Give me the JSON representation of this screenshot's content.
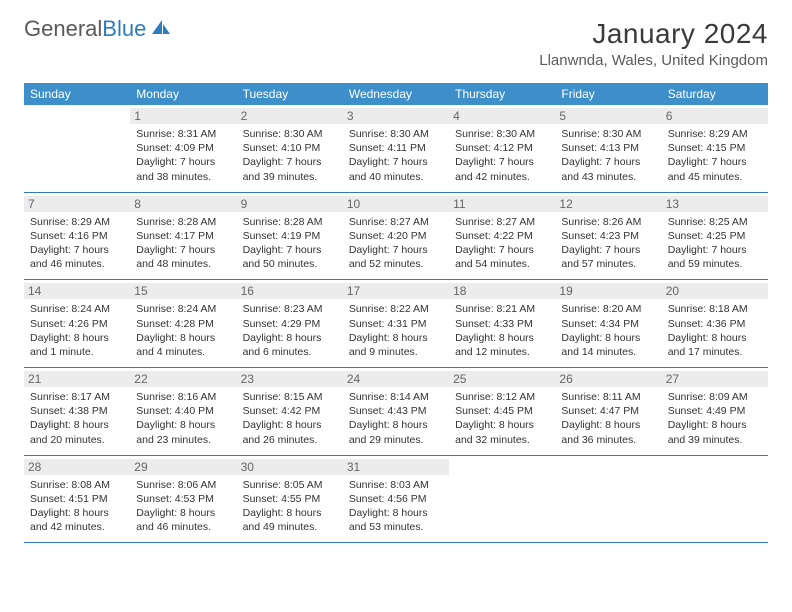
{
  "brand": {
    "part1": "General",
    "part2": "Blue"
  },
  "title": "January 2024",
  "location": "Llanwnda, Wales, United Kingdom",
  "colors": {
    "header_bg": "#3d8fc9",
    "header_text": "#ffffff",
    "daynum_bg": "#ececec",
    "rule": "#2f7bbf",
    "body_text": "#333333",
    "brand_gray": "#5a5a5a",
    "brand_blue": "#2f7bbf"
  },
  "weekdays": [
    "Sunday",
    "Monday",
    "Tuesday",
    "Wednesday",
    "Thursday",
    "Friday",
    "Saturday"
  ],
  "first_day_index": 1,
  "days": [
    {
      "n": 1,
      "sunrise": "8:31 AM",
      "sunset": "4:09 PM",
      "daylight": "7 hours and 38 minutes."
    },
    {
      "n": 2,
      "sunrise": "8:30 AM",
      "sunset": "4:10 PM",
      "daylight": "7 hours and 39 minutes."
    },
    {
      "n": 3,
      "sunrise": "8:30 AM",
      "sunset": "4:11 PM",
      "daylight": "7 hours and 40 minutes."
    },
    {
      "n": 4,
      "sunrise": "8:30 AM",
      "sunset": "4:12 PM",
      "daylight": "7 hours and 42 minutes."
    },
    {
      "n": 5,
      "sunrise": "8:30 AM",
      "sunset": "4:13 PM",
      "daylight": "7 hours and 43 minutes."
    },
    {
      "n": 6,
      "sunrise": "8:29 AM",
      "sunset": "4:15 PM",
      "daylight": "7 hours and 45 minutes."
    },
    {
      "n": 7,
      "sunrise": "8:29 AM",
      "sunset": "4:16 PM",
      "daylight": "7 hours and 46 minutes."
    },
    {
      "n": 8,
      "sunrise": "8:28 AM",
      "sunset": "4:17 PM",
      "daylight": "7 hours and 48 minutes."
    },
    {
      "n": 9,
      "sunrise": "8:28 AM",
      "sunset": "4:19 PM",
      "daylight": "7 hours and 50 minutes."
    },
    {
      "n": 10,
      "sunrise": "8:27 AM",
      "sunset": "4:20 PM",
      "daylight": "7 hours and 52 minutes."
    },
    {
      "n": 11,
      "sunrise": "8:27 AM",
      "sunset": "4:22 PM",
      "daylight": "7 hours and 54 minutes."
    },
    {
      "n": 12,
      "sunrise": "8:26 AM",
      "sunset": "4:23 PM",
      "daylight": "7 hours and 57 minutes."
    },
    {
      "n": 13,
      "sunrise": "8:25 AM",
      "sunset": "4:25 PM",
      "daylight": "7 hours and 59 minutes."
    },
    {
      "n": 14,
      "sunrise": "8:24 AM",
      "sunset": "4:26 PM",
      "daylight": "8 hours and 1 minute."
    },
    {
      "n": 15,
      "sunrise": "8:24 AM",
      "sunset": "4:28 PM",
      "daylight": "8 hours and 4 minutes."
    },
    {
      "n": 16,
      "sunrise": "8:23 AM",
      "sunset": "4:29 PM",
      "daylight": "8 hours and 6 minutes."
    },
    {
      "n": 17,
      "sunrise": "8:22 AM",
      "sunset": "4:31 PM",
      "daylight": "8 hours and 9 minutes."
    },
    {
      "n": 18,
      "sunrise": "8:21 AM",
      "sunset": "4:33 PM",
      "daylight": "8 hours and 12 minutes."
    },
    {
      "n": 19,
      "sunrise": "8:20 AM",
      "sunset": "4:34 PM",
      "daylight": "8 hours and 14 minutes."
    },
    {
      "n": 20,
      "sunrise": "8:18 AM",
      "sunset": "4:36 PM",
      "daylight": "8 hours and 17 minutes."
    },
    {
      "n": 21,
      "sunrise": "8:17 AM",
      "sunset": "4:38 PM",
      "daylight": "8 hours and 20 minutes."
    },
    {
      "n": 22,
      "sunrise": "8:16 AM",
      "sunset": "4:40 PM",
      "daylight": "8 hours and 23 minutes."
    },
    {
      "n": 23,
      "sunrise": "8:15 AM",
      "sunset": "4:42 PM",
      "daylight": "8 hours and 26 minutes."
    },
    {
      "n": 24,
      "sunrise": "8:14 AM",
      "sunset": "4:43 PM",
      "daylight": "8 hours and 29 minutes."
    },
    {
      "n": 25,
      "sunrise": "8:12 AM",
      "sunset": "4:45 PM",
      "daylight": "8 hours and 32 minutes."
    },
    {
      "n": 26,
      "sunrise": "8:11 AM",
      "sunset": "4:47 PM",
      "daylight": "8 hours and 36 minutes."
    },
    {
      "n": 27,
      "sunrise": "8:09 AM",
      "sunset": "4:49 PM",
      "daylight": "8 hours and 39 minutes."
    },
    {
      "n": 28,
      "sunrise": "8:08 AM",
      "sunset": "4:51 PM",
      "daylight": "8 hours and 42 minutes."
    },
    {
      "n": 29,
      "sunrise": "8:06 AM",
      "sunset": "4:53 PM",
      "daylight": "8 hours and 46 minutes."
    },
    {
      "n": 30,
      "sunrise": "8:05 AM",
      "sunset": "4:55 PM",
      "daylight": "8 hours and 49 minutes."
    },
    {
      "n": 31,
      "sunrise": "8:03 AM",
      "sunset": "4:56 PM",
      "daylight": "8 hours and 53 minutes."
    }
  ],
  "labels": {
    "sunrise": "Sunrise:",
    "sunset": "Sunset:",
    "daylight": "Daylight:"
  }
}
